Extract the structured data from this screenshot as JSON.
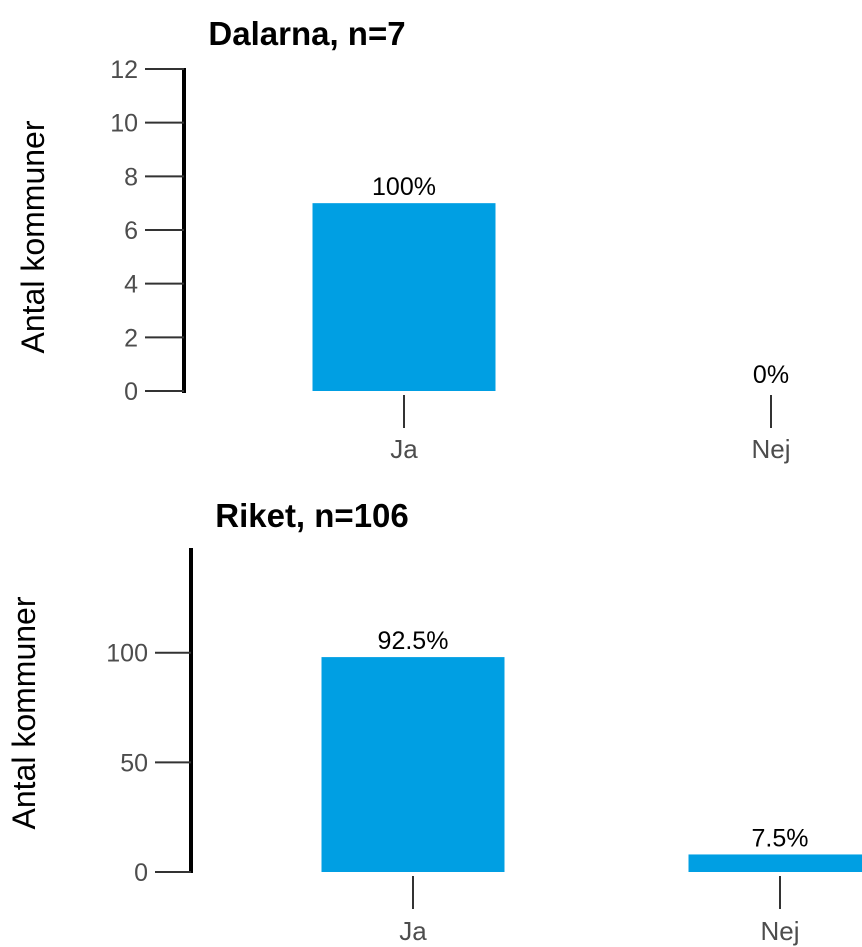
{
  "chart_data": [
    {
      "type": "bar",
      "title": "Dalarna, n=7",
      "ylabel": "Antal kommuner",
      "xlabel": "",
      "categories": [
        "Ja",
        "Nej"
      ],
      "values": [
        7,
        0
      ],
      "labels": [
        "100%",
        "0%"
      ],
      "ylim": [
        0,
        12
      ],
      "yticks": [
        0,
        2,
        4,
        6,
        8,
        10,
        12
      ],
      "bar_color": "#009fe3",
      "grid": false
    },
    {
      "type": "bar",
      "title": "Riket, n=106",
      "ylabel": "Antal kommuner",
      "xlabel": "",
      "categories": [
        "Ja",
        "Nej"
      ],
      "values": [
        98,
        8
      ],
      "labels": [
        "92.5%",
        "7.5%"
      ],
      "ylim": [
        0,
        140
      ],
      "yticks": [
        0,
        50,
        100
      ],
      "bar_color": "#009fe3",
      "grid": false
    }
  ]
}
